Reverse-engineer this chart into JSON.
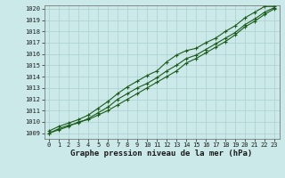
{
  "title": "Graphe pression niveau de la mer (hPa)",
  "bg_color": "#cce9e9",
  "grid_color": "#aacece",
  "line_color": "#1a5c1a",
  "xlim": [
    -0.5,
    23.5
  ],
  "ylim": [
    1008.5,
    1020.3
  ],
  "yticks": [
    1009,
    1010,
    1011,
    1012,
    1013,
    1014,
    1015,
    1016,
    1017,
    1018,
    1019,
    1020
  ],
  "xticks": [
    0,
    1,
    2,
    3,
    4,
    5,
    6,
    7,
    8,
    9,
    10,
    11,
    12,
    13,
    14,
    15,
    16,
    17,
    18,
    19,
    20,
    21,
    22,
    23
  ],
  "series1": [
    1009.2,
    1009.6,
    1009.9,
    1010.2,
    1010.6,
    1011.2,
    1011.8,
    1012.5,
    1013.1,
    1013.6,
    1014.1,
    1014.5,
    1015.3,
    1015.9,
    1016.3,
    1016.5,
    1017.0,
    1017.4,
    1018.0,
    1018.5,
    1019.2,
    1019.7,
    1020.2,
    1020.2
  ],
  "series2": [
    1009.0,
    1009.4,
    1009.7,
    1009.9,
    1010.3,
    1010.8,
    1011.3,
    1012.0,
    1012.5,
    1013.0,
    1013.4,
    1013.9,
    1014.5,
    1015.0,
    1015.6,
    1015.9,
    1016.4,
    1016.9,
    1017.4,
    1017.9,
    1018.6,
    1019.1,
    1019.7,
    1020.1
  ],
  "series3": [
    1009.0,
    1009.3,
    1009.6,
    1010.0,
    1010.2,
    1010.6,
    1011.0,
    1011.5,
    1012.0,
    1012.5,
    1013.0,
    1013.5,
    1014.0,
    1014.5,
    1015.2,
    1015.6,
    1016.1,
    1016.6,
    1017.1,
    1017.7,
    1018.4,
    1018.9,
    1019.5,
    1020.0
  ],
  "marker": "+",
  "marker_size": 3.5,
  "line_width": 0.8,
  "title_fontsize": 6.5,
  "tick_fontsize": 5.0
}
